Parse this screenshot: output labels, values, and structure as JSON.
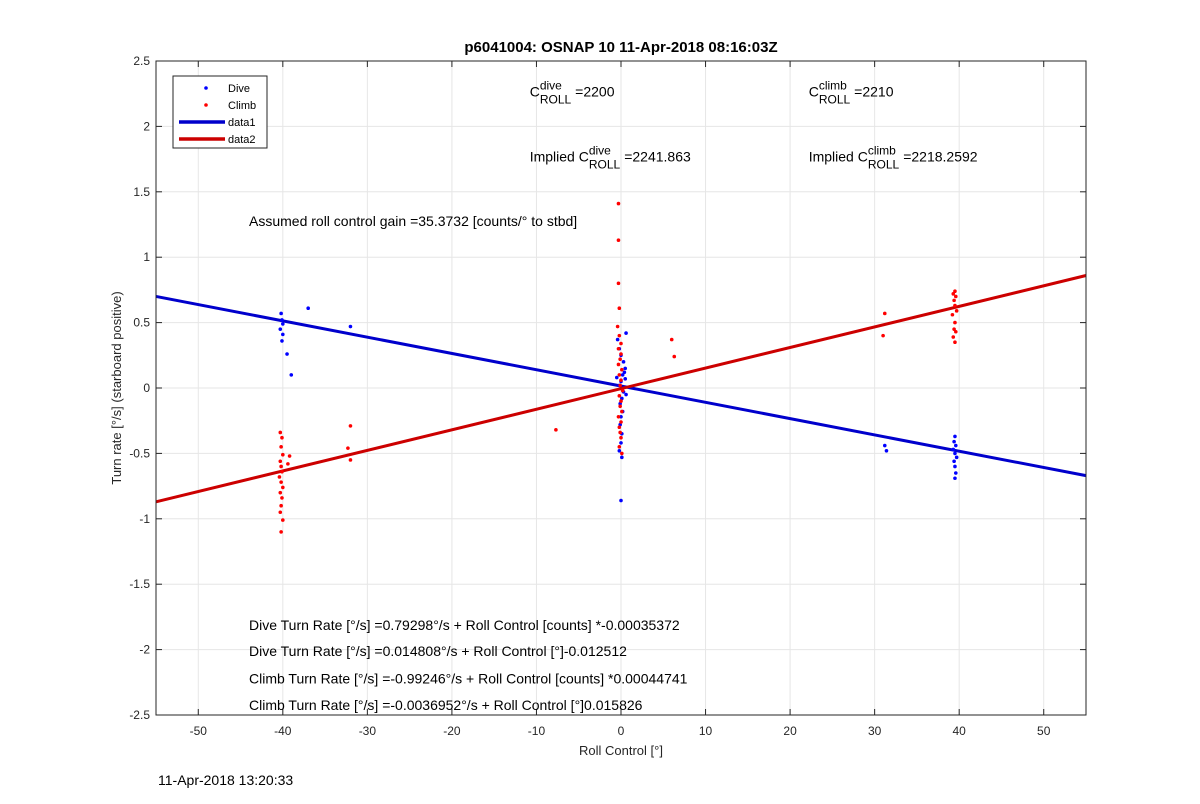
{
  "chart_data": {
    "type": "scatter",
    "title": "p6041004: OSNAP 10 11-Apr-2018 08:16:03Z",
    "xlabel": "Roll Control [°]",
    "ylabel": "Turn rate [°/s] (starboard positive)",
    "xlim": [
      -55,
      55
    ],
    "ylim": [
      -2.5,
      2.5
    ],
    "xticks": [
      -50,
      -40,
      -30,
      -20,
      -10,
      0,
      10,
      20,
      30,
      40,
      50
    ],
    "yticks": [
      -2.5,
      -2,
      -1.5,
      -1,
      -0.5,
      0,
      0.5,
      1,
      1.5,
      2,
      2.5
    ],
    "grid": true,
    "legend_position": "top-left",
    "legend": [
      "Dive",
      "Climb",
      "data1",
      "data2"
    ],
    "colors": {
      "dive": "#0000ff",
      "climb": "#ff0000",
      "data1": "#0000cc",
      "data2": "#cc0000"
    },
    "series": [
      {
        "name": "Dive",
        "kind": "points",
        "points": [
          [
            -40.2,
            0.57
          ],
          [
            -40.1,
            0.52
          ],
          [
            -40.0,
            0.49
          ],
          [
            -40.3,
            0.45
          ],
          [
            -40.0,
            0.41
          ],
          [
            -40.1,
            0.36
          ],
          [
            -39.5,
            0.26
          ],
          [
            -39.0,
            0.1
          ],
          [
            -37.0,
            0.61
          ],
          [
            -32.0,
            0.47
          ],
          [
            -0.4,
            0.37
          ],
          [
            -0.2,
            0.3
          ],
          [
            0.0,
            0.25
          ],
          [
            0.3,
            0.2
          ],
          [
            0.5,
            0.15
          ],
          [
            0.2,
            0.1
          ],
          [
            0.0,
            0.05
          ],
          [
            -0.2,
            0.02
          ],
          [
            0.3,
            -0.03
          ],
          [
            0.1,
            -0.08
          ],
          [
            -0.1,
            -0.12
          ],
          [
            0.2,
            -0.18
          ],
          [
            0.0,
            -0.22
          ],
          [
            -0.1,
            -0.28
          ],
          [
            0.1,
            -0.35
          ],
          [
            0.0,
            -0.42
          ],
          [
            -0.2,
            -0.48
          ],
          [
            0.1,
            -0.53
          ],
          [
            0.0,
            -0.86
          ],
          [
            0.6,
            0.42
          ],
          [
            0.4,
            0.12
          ],
          [
            0.6,
            -0.05
          ],
          [
            0.5,
            0.07
          ],
          [
            -0.5,
            0.08
          ],
          [
            31.2,
            -0.44
          ],
          [
            31.4,
            -0.48
          ],
          [
            39.5,
            -0.37
          ],
          [
            39.4,
            -0.41
          ],
          [
            39.6,
            -0.44
          ],
          [
            39.3,
            -0.47
          ],
          [
            39.5,
            -0.5
          ],
          [
            39.7,
            -0.53
          ],
          [
            39.4,
            -0.56
          ],
          [
            39.5,
            -0.6
          ],
          [
            39.6,
            -0.65
          ],
          [
            39.5,
            -0.69
          ]
        ]
      },
      {
        "name": "Climb",
        "kind": "points",
        "points": [
          [
            -40.3,
            -0.34
          ],
          [
            -40.1,
            -0.38
          ],
          [
            -40.2,
            -0.45
          ],
          [
            -40.0,
            -0.51
          ],
          [
            -40.3,
            -0.56
          ],
          [
            -40.2,
            -0.6
          ],
          [
            -40.1,
            -0.64
          ],
          [
            -40.4,
            -0.68
          ],
          [
            -40.2,
            -0.72
          ],
          [
            -40.0,
            -0.76
          ],
          [
            -40.3,
            -0.8
          ],
          [
            -40.1,
            -0.84
          ],
          [
            -40.2,
            -0.9
          ],
          [
            -40.3,
            -0.95
          ],
          [
            -40.0,
            -1.01
          ],
          [
            -40.2,
            -1.1
          ],
          [
            -39.4,
            -0.58
          ],
          [
            -39.2,
            -0.52
          ],
          [
            -32.0,
            -0.29
          ],
          [
            -32.3,
            -0.46
          ],
          [
            -32.0,
            -0.55
          ],
          [
            -7.7,
            -0.32
          ],
          [
            -0.3,
            1.41
          ],
          [
            -0.3,
            1.13
          ],
          [
            -0.3,
            0.8
          ],
          [
            -0.2,
            0.61
          ],
          [
            -0.4,
            0.47
          ],
          [
            -0.2,
            0.4
          ],
          [
            0.0,
            0.34
          ],
          [
            -0.3,
            0.3
          ],
          [
            0.0,
            0.26
          ],
          [
            -0.1,
            0.22
          ],
          [
            -0.3,
            0.18
          ],
          [
            0.1,
            0.14
          ],
          [
            -0.2,
            0.1
          ],
          [
            0.0,
            0.06
          ],
          [
            -0.1,
            0.02
          ],
          [
            0.2,
            -0.02
          ],
          [
            -0.2,
            -0.06
          ],
          [
            0.0,
            -0.1
          ],
          [
            -0.1,
            -0.14
          ],
          [
            0.1,
            -0.18
          ],
          [
            -0.3,
            -0.22
          ],
          [
            0.0,
            -0.26
          ],
          [
            -0.2,
            -0.3
          ],
          [
            -0.1,
            -0.34
          ],
          [
            0.0,
            -0.38
          ],
          [
            -0.2,
            -0.45
          ],
          [
            0.1,
            -0.5
          ],
          [
            6.0,
            0.37
          ],
          [
            6.3,
            0.24
          ],
          [
            31.2,
            0.57
          ],
          [
            31.0,
            0.4
          ],
          [
            39.5,
            0.74
          ],
          [
            39.3,
            0.72
          ],
          [
            39.6,
            0.7
          ],
          [
            39.4,
            0.67
          ],
          [
            39.5,
            0.63
          ],
          [
            39.7,
            0.59
          ],
          [
            39.2,
            0.56
          ],
          [
            39.5,
            0.5
          ],
          [
            39.4,
            0.45
          ],
          [
            39.6,
            0.43
          ],
          [
            39.3,
            0.39
          ],
          [
            39.5,
            0.35
          ]
        ]
      },
      {
        "name": "data1",
        "kind": "line",
        "x": [
          -55,
          55
        ],
        "y": [
          0.7,
          -0.67
        ]
      },
      {
        "name": "data2",
        "kind": "line",
        "x": [
          -55,
          55
        ],
        "y": [
          -0.87,
          0.86
        ]
      }
    ],
    "annotations": [
      {
        "id": "c-roll-dive",
        "base": "C",
        "sup": "dive",
        "sub": "ROLL",
        "value": "=2200",
        "x": -10.8,
        "y": 2.23
      },
      {
        "id": "c-roll-climb",
        "base": "C",
        "sup": "climb",
        "sub": "ROLL",
        "value": "=2210",
        "x": 22.2,
        "y": 2.23
      },
      {
        "id": "implied-dive",
        "prefix": "Implied ",
        "base": "C",
        "sup": "dive",
        "sub": "ROLL",
        "value": "=2241.863",
        "x": -10.8,
        "y": 1.73
      },
      {
        "id": "implied-climb",
        "prefix": "Implied ",
        "base": "C",
        "sup": "climb",
        "sub": "ROLL",
        "value": "=2218.2592",
        "x": 22.2,
        "y": 1.73
      }
    ],
    "notes": [
      {
        "id": "gain-note",
        "text": "Assumed roll control gain =35.3732 [counts/° to stbd]",
        "x": -44.0,
        "y": 1.24
      },
      {
        "id": "fit-dive-counts",
        "text": "Dive Turn Rate [°/s] =0.79298°/s + Roll Control [counts] *-0.00035372",
        "x": -44.0,
        "y": -1.85
      },
      {
        "id": "fit-dive-deg",
        "text": "Dive Turn Rate [°/s] =0.014808°/s + Roll Control [°]-0.012512",
        "x": -44.0,
        "y": -2.05
      },
      {
        "id": "fit-climb-counts",
        "text": "Climb Turn Rate [°/s] =-0.99246°/s + Roll Control [counts] *0.00044741",
        "x": -44.0,
        "y": -2.26
      },
      {
        "id": "fit-climb-deg",
        "text": "Climb Turn Rate [°/s] =-0.0036952°/s + Roll Control [°]0.015826",
        "x": -44.0,
        "y": -2.46
      }
    ]
  },
  "footer_timestamp": "11-Apr-2018 13:20:33"
}
